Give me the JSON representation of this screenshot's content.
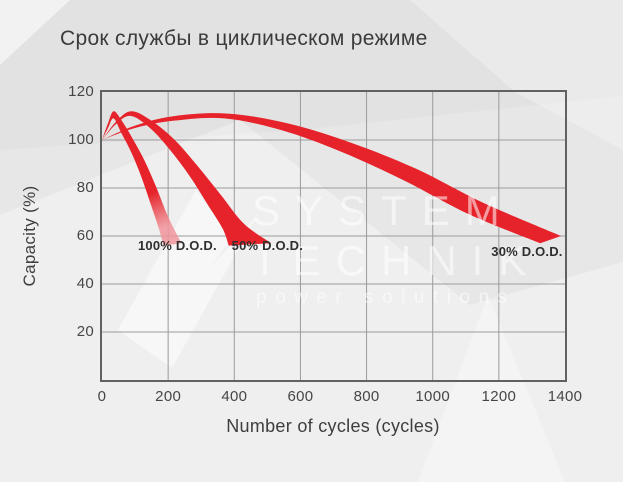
{
  "title": "Срок службы в циклическом режиме",
  "watermark": {
    "line1": "SYSTEM",
    "line2": "TECHNIK",
    "tagline": "power solutions"
  },
  "chart_data": {
    "type": "area",
    "title": "Срок службы в циклическом режиме",
    "xlabel": "Number of cycles (cycles)",
    "ylabel": "Capacity (%)",
    "xlim": [
      0,
      1400
    ],
    "ylim": [
      0,
      120
    ],
    "x_ticks": [
      0,
      200,
      400,
      600,
      800,
      1000,
      1200,
      1400
    ],
    "y_ticks": [
      20,
      40,
      60,
      80,
      100,
      120
    ],
    "grid": true,
    "legend_position": "inline-labels",
    "band_color": "#e6232a",
    "description": "Three red wedge bands; each starts at (0 cycles, 100%), rises to a peak of ~110-112%, then declines while widening until cut off near 57-60% capacity.",
    "series": [
      {
        "name": "100% D.O.D.",
        "label_at": [
          228,
          55.5
        ],
        "upper": [
          [
            0,
            100
          ],
          [
            18,
            107
          ],
          [
            35,
            112
          ],
          [
            60,
            108
          ],
          [
            95,
            100
          ],
          [
            130,
            91
          ],
          [
            165,
            80
          ],
          [
            200,
            68
          ],
          [
            240,
            57
          ]
        ],
        "lower": [
          [
            0,
            100
          ],
          [
            18,
            105
          ],
          [
            35,
            109
          ],
          [
            58,
            103
          ],
          [
            88,
            95
          ],
          [
            118,
            85
          ],
          [
            148,
            73
          ],
          [
            172,
            63
          ],
          [
            186,
            56
          ]
        ]
      },
      {
        "name": "50% D.O.D.",
        "label_at": [
          500,
          55.5
        ],
        "upper": [
          [
            0,
            100
          ],
          [
            45,
            108
          ],
          [
            90,
            112
          ],
          [
            150,
            108
          ],
          [
            220,
            100
          ],
          [
            290,
            89
          ],
          [
            360,
            77
          ],
          [
            430,
            65
          ],
          [
            512,
            57
          ]
        ],
        "lower": [
          [
            0,
            100
          ],
          [
            45,
            107
          ],
          [
            88,
            110
          ],
          [
            145,
            105
          ],
          [
            205,
            96
          ],
          [
            265,
            85
          ],
          [
            320,
            73
          ],
          [
            365,
            63
          ],
          [
            383,
            56
          ]
        ]
      },
      {
        "name": "30% D.O.D.",
        "label_at": [
          1285,
          53
        ],
        "upper": [
          [
            0,
            100
          ],
          [
            100,
            106
          ],
          [
            220,
            110
          ],
          [
            380,
            111
          ],
          [
            560,
            107
          ],
          [
            750,
            99
          ],
          [
            950,
            88
          ],
          [
            1150,
            74
          ],
          [
            1388,
            60
          ]
        ],
        "lower": [
          [
            0,
            100
          ],
          [
            100,
            105
          ],
          [
            215,
            108
          ],
          [
            370,
            109
          ],
          [
            545,
            104
          ],
          [
            725,
            95
          ],
          [
            915,
            83
          ],
          [
            1110,
            69
          ],
          [
            1325,
            57
          ]
        ]
      }
    ]
  },
  "colors": {
    "band": "#e6232a",
    "band_fade_tip": "#f0959b",
    "grid": "#9b9b9b",
    "axis_border": "#616161",
    "title_text": "#3b3b3b",
    "tick_text": "#464646",
    "label_text": "#2e2e2e",
    "background": "#e7e7e7",
    "watermark": "rgba(255,255,255,0.55)"
  }
}
